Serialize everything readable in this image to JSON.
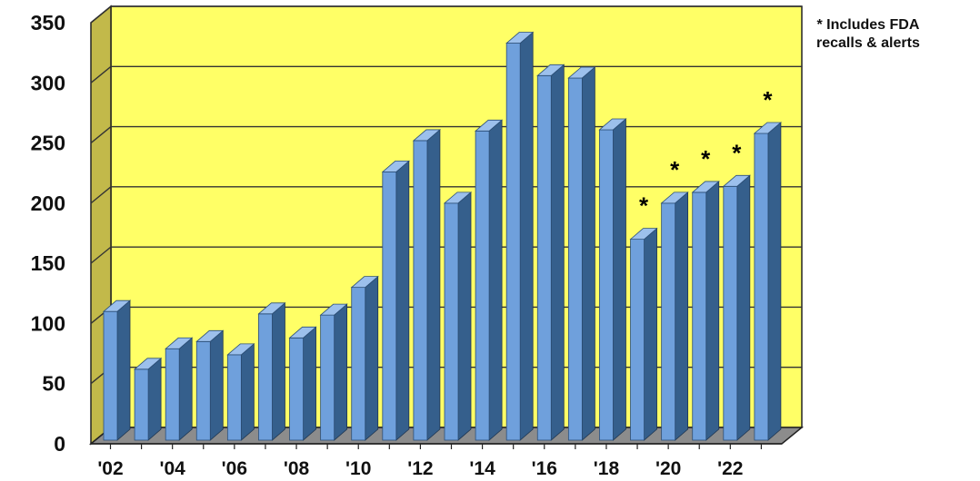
{
  "note": {
    "line1": "* Includes FDA",
    "line2": "recalls & alerts"
  },
  "colors": {
    "plot_back": "#ffff66",
    "plot_side": "#c2b94a",
    "floor": "#8c8c8c",
    "bar_front": "#6fa0dc",
    "bar_side": "#355f8c",
    "bar_top": "#9cc0ec"
  },
  "chart_data": {
    "type": "bar",
    "categories": [
      "'02",
      "'03",
      "'04",
      "'05",
      "'06",
      "'07",
      "'08",
      "'09",
      "'10",
      "'11",
      "'12",
      "'13",
      "'14",
      "'15",
      "'16",
      "'17",
      "'18",
      "'19",
      "'20",
      "'21",
      "'22",
      "'23"
    ],
    "tick_labels": [
      "'02",
      "",
      "'04",
      "",
      "'06",
      "",
      "'08",
      "",
      "'10",
      "",
      "'12",
      "",
      "'14",
      "",
      "'16",
      "",
      "'18",
      "",
      "'20",
      "",
      "'22",
      ""
    ],
    "values": [
      110,
      62,
      79,
      85,
      74,
      108,
      88,
      107,
      130,
      226,
      252,
      200,
      260,
      333,
      306,
      304,
      261,
      170,
      200,
      209,
      214,
      258
    ],
    "marker": "*",
    "marked": [
      "'19",
      "'20",
      "'21",
      "'22",
      "'23"
    ],
    "yticks": [
      0,
      50,
      100,
      150,
      200,
      250,
      300,
      350
    ],
    "ylim": [
      0,
      350
    ],
    "grid": true,
    "title": "",
    "xlabel": "",
    "ylabel": ""
  }
}
